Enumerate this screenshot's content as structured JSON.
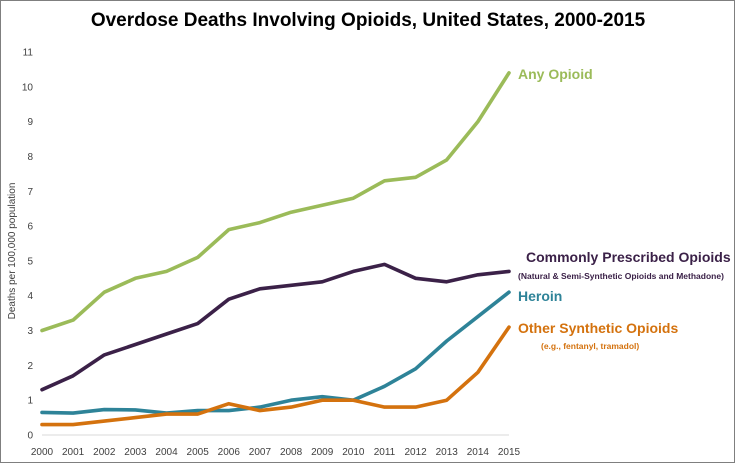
{
  "chart_data": {
    "type": "line",
    "title": "Overdose Deaths Involving Opioids, United States, 2000-2015",
    "xlabel": "",
    "ylabel": "Deaths per 100,000 population",
    "ylim": [
      0,
      11
    ],
    "yticks": [
      "0",
      "1",
      "2",
      "3",
      "4",
      "5",
      "6",
      "7",
      "8",
      "9",
      "10",
      "11"
    ],
    "grid": false,
    "x": [
      "2000",
      "2001",
      "2002",
      "2003",
      "2004",
      "2005",
      "2006",
      "2007",
      "2008",
      "2009",
      "2010",
      "2011",
      "2012",
      "2013",
      "2014",
      "2015"
    ],
    "series": [
      {
        "name": "Any Opioid",
        "subtitle": "",
        "color": "#9bbb59",
        "values": [
          3.0,
          3.3,
          4.1,
          4.5,
          4.7,
          5.1,
          5.9,
          6.1,
          6.4,
          6.6,
          6.8,
          7.3,
          7.4,
          7.9,
          9.0,
          10.4
        ]
      },
      {
        "name": "Commonly Prescribed Opioids",
        "subtitle": "(Natural & Semi-Synthetic Opioids and Methadone)",
        "color": "#3b2148",
        "values": [
          1.3,
          1.7,
          2.3,
          2.6,
          2.9,
          3.2,
          3.9,
          4.2,
          4.3,
          4.4,
          4.7,
          4.9,
          4.5,
          4.4,
          4.6,
          4.7
        ]
      },
      {
        "name": "Heroin",
        "subtitle": "",
        "color": "#2e8398",
        "values": [
          0.65,
          0.63,
          0.73,
          0.72,
          0.63,
          0.7,
          0.7,
          0.8,
          1.0,
          1.1,
          1.0,
          1.4,
          1.9,
          2.7,
          3.4,
          4.1
        ]
      },
      {
        "name": "Other Synthetic Opioids",
        "subtitle": "(e.g., fentanyl, tramadol)",
        "color": "#d4720e",
        "values": [
          0.3,
          0.3,
          0.4,
          0.5,
          0.6,
          0.6,
          0.9,
          0.7,
          0.8,
          1.0,
          1.0,
          0.8,
          0.8,
          1.0,
          1.8,
          3.1
        ]
      }
    ]
  }
}
